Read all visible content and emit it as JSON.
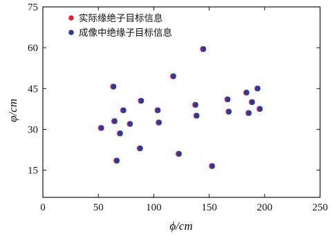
{
  "chart_data": {
    "type": "scatter",
    "xlabel": "ϕ/cm",
    "ylabel": "φ/cm",
    "xlim": [
      0,
      250
    ],
    "ylim": [
      5,
      75
    ],
    "xticks": [
      0,
      50,
      100,
      150,
      200,
      250
    ],
    "yticks": [
      15,
      30,
      45,
      60,
      75
    ],
    "grid": false,
    "legend_position": "top-left",
    "series": [
      {
        "name": "实际缘绝子目标信息",
        "color": "#e8202a",
        "points": [
          [
            52,
            30.5
          ],
          [
            63,
            45.7
          ],
          [
            64,
            33
          ],
          [
            66,
            18.5
          ],
          [
            69,
            28.5
          ],
          [
            72,
            37
          ],
          [
            78,
            32
          ],
          [
            87,
            23
          ],
          [
            88,
            40.5
          ],
          [
            103,
            37
          ],
          [
            104,
            32.5
          ],
          [
            117,
            49.5
          ],
          [
            122,
            21
          ],
          [
            137,
            39
          ],
          [
            138,
            35
          ],
          [
            144,
            59.5
          ],
          [
            152,
            16.5
          ],
          [
            166,
            41
          ],
          [
            167,
            36.5
          ],
          [
            183,
            43.5
          ],
          [
            185,
            36
          ],
          [
            188,
            40
          ],
          [
            193,
            45
          ],
          [
            195,
            37.5
          ]
        ]
      },
      {
        "name": "成像中绝缘子目标信息",
        "color": "#2b3aa0",
        "points": [
          [
            53,
            30.5
          ],
          [
            64,
            45.7
          ],
          [
            65,
            33
          ],
          [
            67,
            18.5
          ],
          [
            70,
            28.5
          ],
          [
            73,
            37
          ],
          [
            79,
            32
          ],
          [
            88,
            23
          ],
          [
            89,
            40.5
          ],
          [
            104,
            37
          ],
          [
            105,
            32.5
          ],
          [
            118,
            49.5
          ],
          [
            123,
            21
          ],
          [
            138,
            39
          ],
          [
            139,
            35
          ],
          [
            145,
            59.5
          ],
          [
            153,
            16.5
          ],
          [
            167,
            41
          ],
          [
            168,
            36.5
          ],
          [
            184,
            43.5
          ],
          [
            186,
            36
          ],
          [
            189,
            40
          ],
          [
            194,
            45
          ],
          [
            196,
            37.5
          ]
        ]
      }
    ]
  }
}
